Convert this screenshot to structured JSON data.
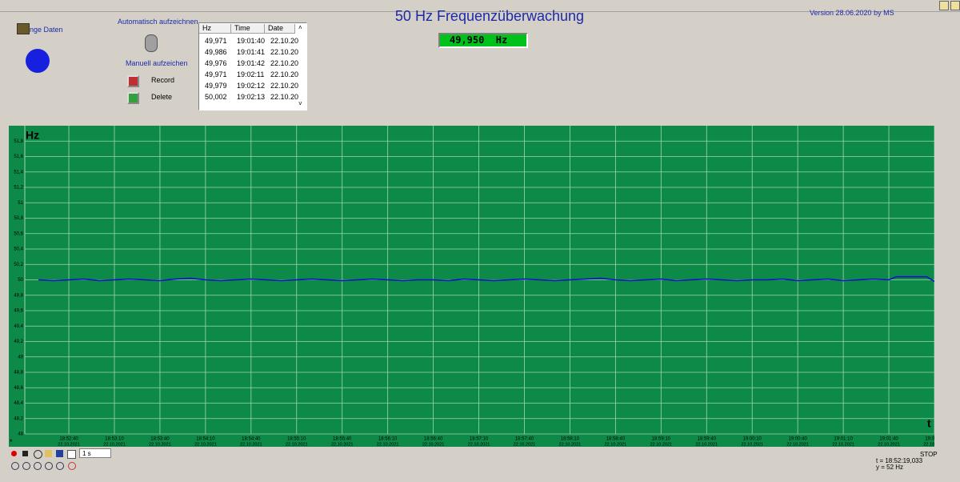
{
  "header": {
    "title": "50 Hz Frequenzüberwachung",
    "version": "Version 28.06.2020 by MS",
    "display": "49,950  Hz"
  },
  "controls": {
    "load": "Lange Daten",
    "auto": "Automatisch aufzeichnen",
    "manual": "Manuell aufzeichen",
    "record": "Record",
    "delete": "Delete",
    "interval": "1 s",
    "status": "STOP",
    "cursor_t": "t = 18:52:19,033",
    "cursor_y": "y = 52 Hz"
  },
  "table": {
    "columns": [
      "Hz",
      "Time",
      "Date"
    ],
    "rows": [
      [
        "49,971",
        "19:01:40",
        "22.10.20"
      ],
      [
        "49,986",
        "19:01:41",
        "22.10.20"
      ],
      [
        "49,976",
        "19:01:42",
        "22.10.20"
      ],
      [
        "49,971",
        "19:02:11",
        "22.10.20"
      ],
      [
        "49,979",
        "19:02:12",
        "22.10.20"
      ],
      [
        "50,002",
        "19:02:13",
        "22.10.20"
      ]
    ]
  },
  "chart_data": {
    "type": "line",
    "y_label": "Hz",
    "x_label": "t",
    "grid": true,
    "ylim": [
      48,
      52
    ],
    "yticks": [
      48,
      {
        "value": 48.2,
        "label": "48,2"
      },
      {
        "value": 48.4,
        "label": "48,4"
      },
      {
        "value": 48.6,
        "label": "48,6"
      },
      {
        "value": 48.8,
        "label": "48,8"
      },
      49,
      {
        "value": 49.2,
        "label": "49,2"
      },
      {
        "value": 49.4,
        "label": "49,4"
      },
      {
        "value": 49.6,
        "label": "49,6"
      },
      {
        "value": 49.8,
        "label": "49,8"
      },
      50,
      {
        "value": 50.2,
        "label": "50,2"
      },
      {
        "value": 50.4,
        "label": "50,4"
      },
      {
        "value": 50.6,
        "label": "50,6"
      },
      {
        "value": 50.8,
        "label": "50,8"
      },
      51,
      {
        "value": 51.2,
        "label": "51,2"
      },
      {
        "value": 51.4,
        "label": "51,4"
      },
      {
        "value": 51.6,
        "label": "51,6"
      },
      {
        "value": 51.8,
        "label": "51,8"
      }
    ],
    "xlim": [
      "18:52:11",
      "19:02:10"
    ],
    "xticks": [
      "18:52:40",
      "18:53:10",
      "18:53:40",
      "18:54:10",
      "18:54:40",
      "18:55:10",
      "18:55:40",
      "18:56:10",
      "18:56:40",
      "18:57:10",
      "18:57:40",
      "18:58:10",
      "18:58:40",
      "18:59:10",
      "18:59:40",
      "19:00:10",
      "19:00:40",
      "19:01:10",
      "19:01:40",
      "19:02:10"
    ],
    "xtick_date": "22.10.2021",
    "x": [
      "18:52:20",
      "18:52:30",
      "18:52:40",
      "18:52:50",
      "18:53:00",
      "18:53:10",
      "18:53:20",
      "18:53:30",
      "18:53:40",
      "18:53:50",
      "18:54:00",
      "18:54:10",
      "18:54:20",
      "18:54:30",
      "18:54:40",
      "18:54:50",
      "18:55:00",
      "18:55:10",
      "18:55:20",
      "18:55:30",
      "18:55:40",
      "18:55:50",
      "18:56:00",
      "18:56:10",
      "18:56:20",
      "18:56:30",
      "18:56:40",
      "18:56:50",
      "18:57:00",
      "18:57:10",
      "18:57:20",
      "18:57:30",
      "18:57:40",
      "18:57:50",
      "18:58:00",
      "18:58:10",
      "18:58:20",
      "18:58:30",
      "18:58:40",
      "18:58:50",
      "18:59:00",
      "18:59:10",
      "18:59:20",
      "18:59:30",
      "18:59:40",
      "18:59:50",
      "19:00:00",
      "19:00:10",
      "19:00:20",
      "19:00:30",
      "19:00:40",
      "19:00:50",
      "19:01:00",
      "19:01:10",
      "19:01:20",
      "19:01:30",
      "19:01:40",
      "19:01:45",
      "19:02:05",
      "19:02:10"
    ],
    "series": [
      {
        "color": "#1010c8",
        "values": [
          50.0,
          49.99,
          50.0,
          50.01,
          49.99,
          50.0,
          50.01,
          50.0,
          49.99,
          50.01,
          50.02,
          50.0,
          49.99,
          50.0,
          50.01,
          50.0,
          49.99,
          50.0,
          50.01,
          50.0,
          49.99,
          50.0,
          50.01,
          50.0,
          49.99,
          50.0,
          50.0,
          49.99,
          50.01,
          50.0,
          49.99,
          50.0,
          50.01,
          50.0,
          49.99,
          50.0,
          50.01,
          50.02,
          50.0,
          49.99,
          50.0,
          50.01,
          49.99,
          50.0,
          50.01,
          50.0,
          49.99,
          50.0,
          50.0,
          50.01,
          49.99,
          50.0,
          50.01,
          49.99,
          50.0,
          50.01,
          50.0,
          50.04,
          50.04,
          49.98
        ]
      }
    ]
  }
}
